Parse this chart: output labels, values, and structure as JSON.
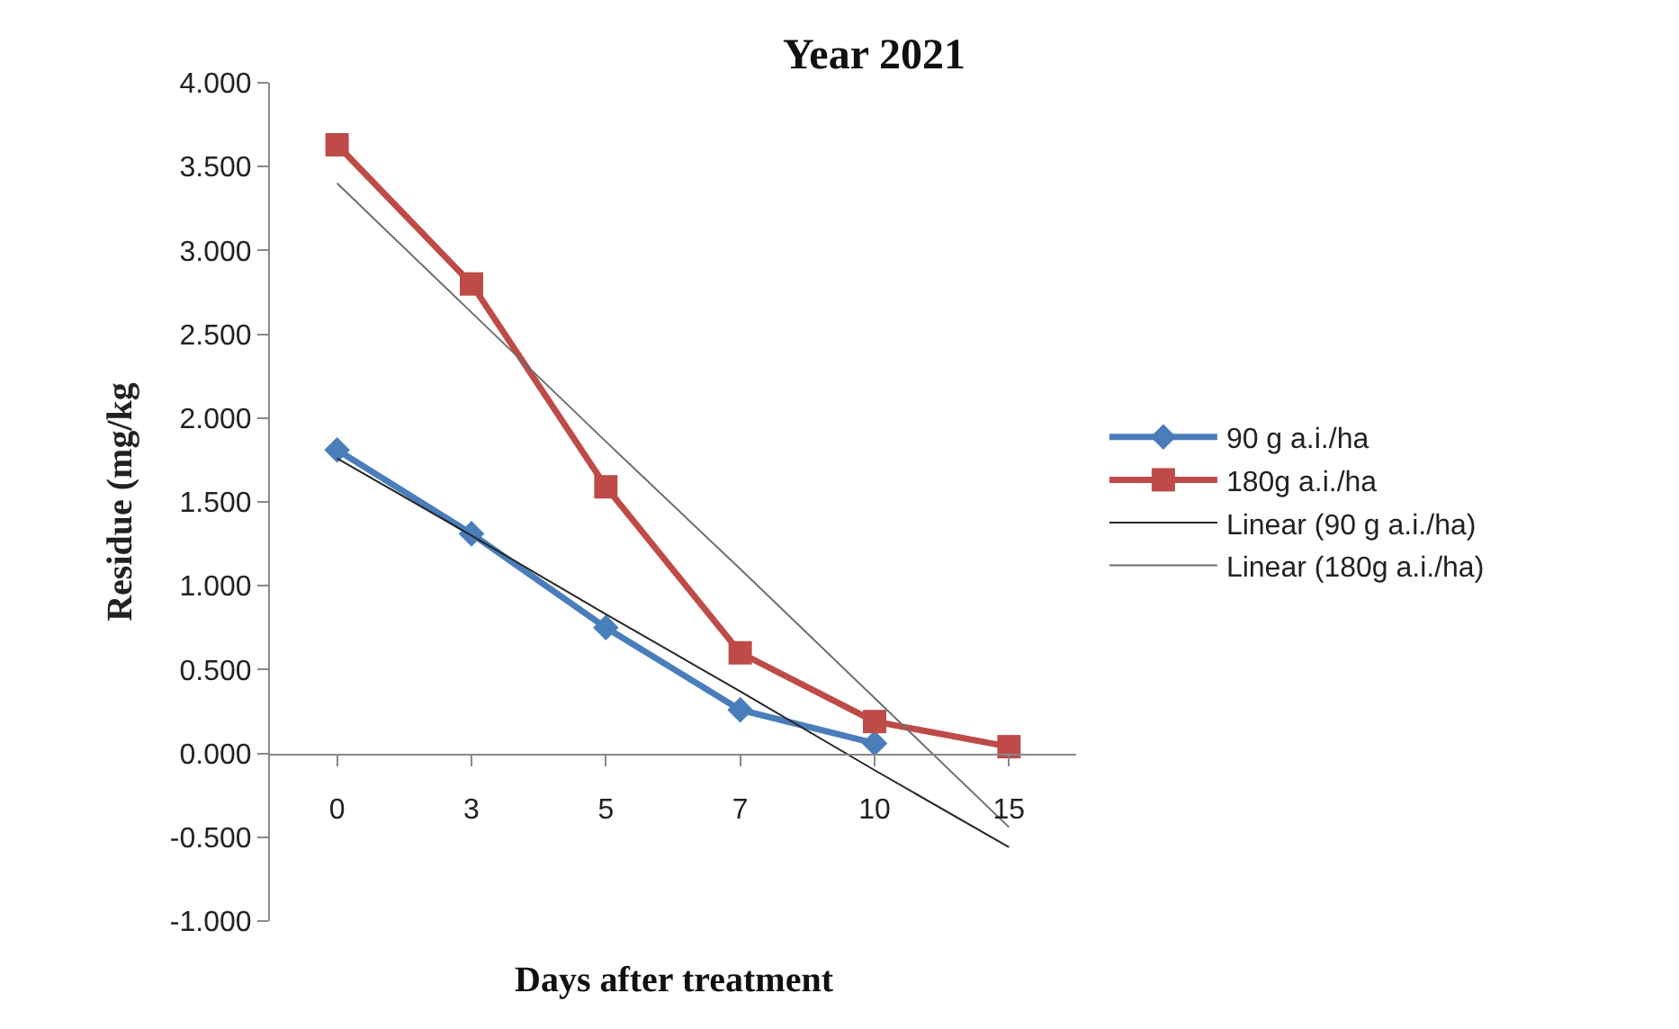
{
  "chart_data": {
    "type": "line",
    "title": "Year 2021",
    "xlabel": "Days after treatment",
    "ylabel": "Residue (mg/kg",
    "categories": [
      "0",
      "3",
      "5",
      "7",
      "10",
      "15"
    ],
    "series": [
      {
        "name": "90 g a.i./ha",
        "color": "#4a7ebb",
        "marker": "diamond",
        "values": [
          1.81,
          1.31,
          0.75,
          0.26,
          0.06,
          null
        ]
      },
      {
        "name": "180g a.i./ha",
        "color": "#be4b48",
        "marker": "square",
        "values": [
          3.63,
          2.8,
          1.59,
          0.6,
          0.19,
          0.04
        ]
      },
      {
        "name": "Linear (90 g a.i./ha)",
        "color": "#262626",
        "marker": "none",
        "values": [
          1.76,
          1.3,
          0.83,
          0.37,
          -0.1,
          -0.56
        ]
      },
      {
        "name": "Linear (180g a.i./ha)",
        "color": "#6e6e6e",
        "marker": "none",
        "values": [
          3.4,
          2.63,
          1.86,
          1.1,
          0.33,
          -0.44
        ]
      }
    ],
    "ylim": [
      -1,
      4
    ],
    "yticks": [
      {
        "value": -1,
        "label": "-1.000"
      },
      {
        "value": -0.5,
        "label": "-0.500"
      },
      {
        "value": 0,
        "label": "0.000"
      },
      {
        "value": 0.5,
        "label": "0.500"
      },
      {
        "value": 1,
        "label": "1.000"
      },
      {
        "value": 1.5,
        "label": "1.500"
      },
      {
        "value": 2,
        "label": "2.000"
      },
      {
        "value": 2.5,
        "label": "2.500"
      },
      {
        "value": 3,
        "label": "3.000"
      },
      {
        "value": 3.5,
        "label": "3.500"
      },
      {
        "value": 4,
        "label": "4.000"
      }
    ],
    "legend": "right",
    "line_style": "solid"
  }
}
